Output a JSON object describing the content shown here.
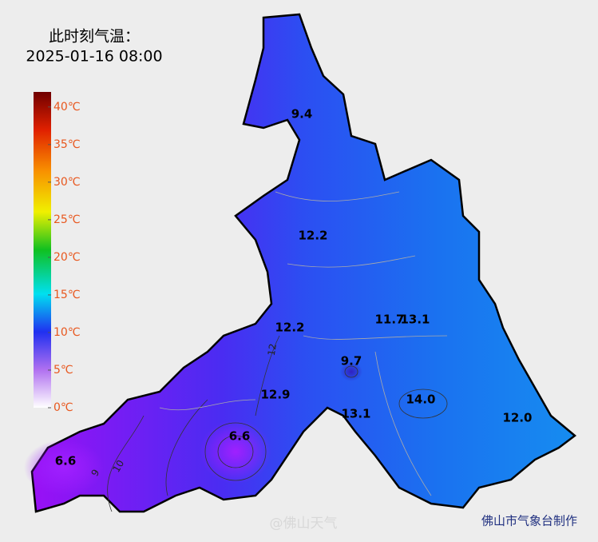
{
  "header": {
    "title": "此时刻气温：",
    "time": "2025-01-16 08:00"
  },
  "legend": {
    "ylim": [
      0,
      42
    ],
    "ticks": [
      {
        "value": 0,
        "label": "0℃"
      },
      {
        "value": 5,
        "label": "5℃"
      },
      {
        "value": 10,
        "label": "10℃"
      },
      {
        "value": 15,
        "label": "15℃"
      },
      {
        "value": 20,
        "label": "20℃"
      },
      {
        "value": 25,
        "label": "25℃"
      },
      {
        "value": 30,
        "label": "30℃"
      },
      {
        "value": 35,
        "label": "35℃"
      },
      {
        "value": 40,
        "label": "40℃"
      }
    ]
  },
  "stations": [
    "9.4",
    "12.2",
    "11.7",
    "13.1",
    "12.2",
    "9.7",
    "12.9",
    "14.0",
    "13.1",
    "12.0",
    "6.6",
    "6.6"
  ],
  "contour_labels": [
    "12",
    "10",
    "9"
  ],
  "footer": {
    "watermark": "@佛山天气",
    "credit": "佛山市气象台制作"
  }
}
